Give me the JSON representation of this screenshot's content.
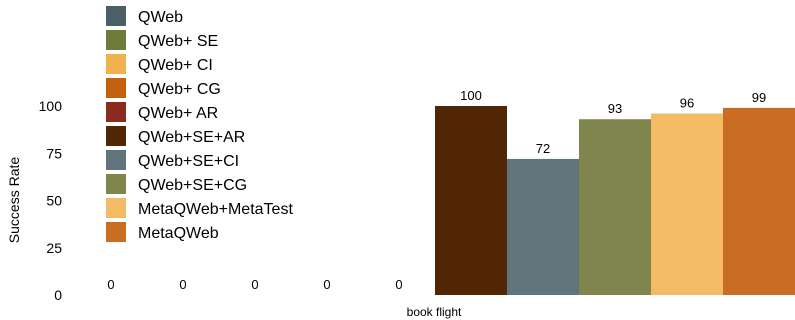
{
  "chart_data": {
    "type": "bar",
    "categories": [
      "book flight"
    ],
    "ylabel": "Success Rate",
    "xlabel": "",
    "ylim": [
      0,
      100
    ],
    "yticks": [
      0,
      25,
      50,
      75,
      100
    ],
    "grid": false,
    "legend_position": "top-left",
    "series": [
      {
        "name": "QWeb",
        "values": [
          0
        ],
        "color": "#4a5f66"
      },
      {
        "name": "QWeb+ SE",
        "values": [
          0
        ],
        "color": "#6f7b3b"
      },
      {
        "name": "QWeb+ CI",
        "values": [
          0
        ],
        "color": "#f2b14f"
      },
      {
        "name": "QWeb+ CG",
        "values": [
          0
        ],
        "color": "#c2620f"
      },
      {
        "name": "QWeb+ AR",
        "values": [
          0
        ],
        "color": "#8b2a1e"
      },
      {
        "name": "QWeb+SE+AR",
        "values": [
          100
        ],
        "color": "#502605"
      },
      {
        "name": "QWeb+SE+CI",
        "values": [
          72
        ],
        "color": "#5f757b"
      },
      {
        "name": "QWeb+SE+CG",
        "values": [
          93
        ],
        "color": "#7f854d"
      },
      {
        "name": "MetaQWeb+MetaTest",
        "values": [
          96
        ],
        "color": "#f3bb66"
      },
      {
        "name": "MetaQWeb",
        "values": [
          99
        ],
        "color": "#c96d22"
      }
    ]
  }
}
